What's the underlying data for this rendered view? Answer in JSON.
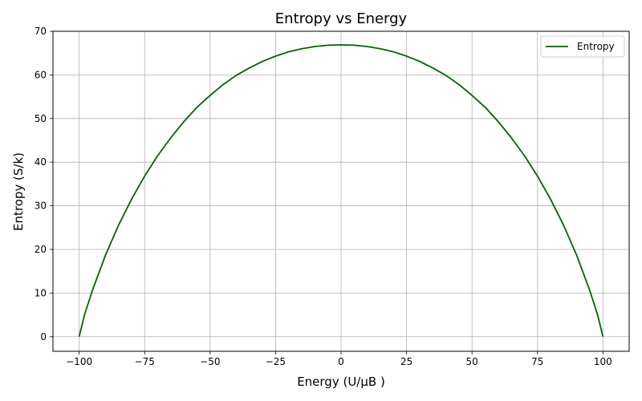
{
  "chart_data": {
    "type": "line",
    "title": "Entropy vs Energy",
    "xlabel": "Energy (U/μB )",
    "ylabel": "Entropy (S/k)",
    "xlim": [
      -110,
      110
    ],
    "ylim": [
      -3.35,
      70
    ],
    "xticks": [
      -100,
      -75,
      -50,
      -25,
      0,
      25,
      50,
      75,
      100
    ],
    "yticks": [
      0,
      10,
      20,
      30,
      40,
      50,
      60,
      70
    ],
    "xtick_labels": [
      "−100",
      "−75",
      "−50",
      "−25",
      "0",
      "25",
      "50",
      "75",
      "100"
    ],
    "ytick_labels": [
      "0",
      "10",
      "20",
      "30",
      "40",
      "50",
      "60",
      "70"
    ],
    "grid": true,
    "legend": {
      "position": "upper-right",
      "entries": [
        "Entropy"
      ]
    },
    "series": [
      {
        "name": "Entropy",
        "color": "#006400",
        "x": [
          -100,
          -98,
          -95,
          -90,
          -85,
          -80,
          -75,
          -70,
          -65,
          -60,
          -55,
          -50,
          -45,
          -40,
          -35,
          -30,
          -25,
          -20,
          -15,
          -10,
          -5,
          0,
          5,
          10,
          15,
          20,
          25,
          30,
          35,
          40,
          45,
          50,
          55,
          60,
          65,
          70,
          75,
          80,
          85,
          90,
          95,
          98,
          100
        ],
        "y": [
          0,
          4.9,
          10.5,
          18.6,
          25.5,
          31.5,
          36.8,
          41.5,
          45.6,
          49.3,
          52.6,
          55.3,
          57.8,
          59.9,
          61.6,
          63.1,
          64.3,
          65.3,
          66.0,
          66.5,
          66.8,
          66.9,
          66.8,
          66.5,
          66.0,
          65.3,
          64.3,
          63.1,
          61.6,
          59.9,
          57.8,
          55.3,
          52.6,
          49.3,
          45.6,
          41.5,
          36.8,
          31.5,
          25.5,
          18.6,
          10.5,
          4.9,
          0
        ]
      }
    ]
  }
}
